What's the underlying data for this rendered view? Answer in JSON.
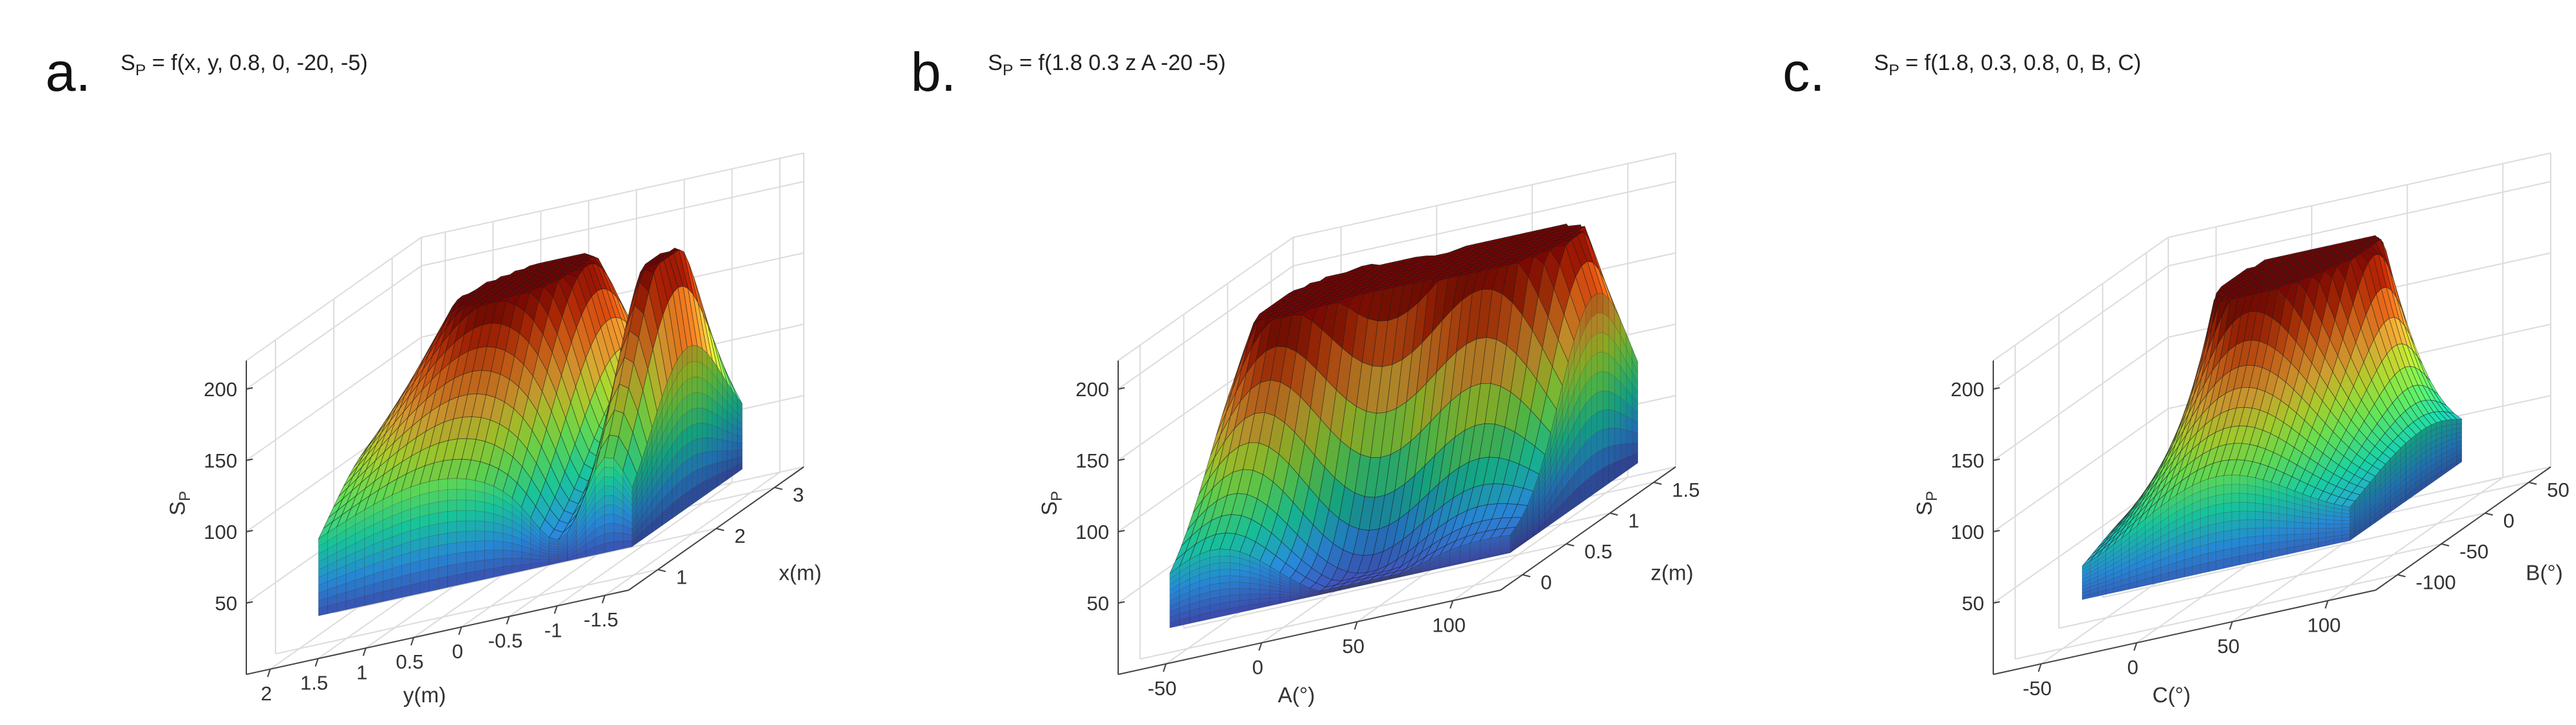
{
  "panels": [
    {
      "label": "a.",
      "title": "S_P = f(x, y, 0.8, 0, -20, -5)",
      "zlabel": "S_P",
      "xlabel": "y(m)",
      "ylabel": "x(m)",
      "zticks": [
        "50",
        "100",
        "150",
        "200"
      ],
      "xticks": [
        "2",
        "1.5",
        "1",
        "0.5",
        "0",
        "-0.5",
        "-1",
        "-1.5"
      ],
      "yticks": [
        "1",
        "2",
        "3"
      ]
    },
    {
      "label": "b.",
      "title": "S_P = f(1.8 0.3 z A -20 -5)",
      "zlabel": "S_P",
      "xlabel": "A(°)",
      "ylabel": "z(m)",
      "zticks": [
        "50",
        "100",
        "150",
        "200"
      ],
      "xticks": [
        "-50",
        "0",
        "50",
        "100"
      ],
      "yticks": [
        "0",
        "0.5",
        "1",
        "1.5"
      ]
    },
    {
      "label": "c.",
      "title": "S_P = f(1.8, 0.3, 0.8, 0, B, C)",
      "zlabel": "S_P",
      "xlabel": "C(°)",
      "ylabel": "B(°)",
      "zticks": [
        "50",
        "100",
        "150",
        "200"
      ],
      "xticks": [
        "-50",
        "0",
        "50",
        "100"
      ],
      "yticks": [
        "-100",
        "-50",
        "0",
        "50"
      ]
    }
  ],
  "chart_data": [
    {
      "type": "surface",
      "title": "S_P = f(x, y, 0.8, 0, -20, -5)",
      "x_axis": {
        "label": "y(m)",
        "range": [
          2,
          -2
        ],
        "ticks": [
          2,
          1.5,
          1,
          0.5,
          0,
          -0.5,
          -1,
          -1.5
        ]
      },
      "y_axis": {
        "label": "x(m)",
        "range": [
          0.5,
          3
        ],
        "ticks": [
          1,
          2,
          3
        ]
      },
      "z_axis": {
        "label": "S_P",
        "range": [
          0,
          200
        ],
        "ticks": [
          50,
          100,
          150,
          200
        ]
      },
      "surface": {
        "base": 30,
        "peaks": [
          {
            "u": 0.52,
            "v": 0.58,
            "height": 185,
            "spread_u": 0.2,
            "spread_v": 0.25
          },
          {
            "u": 0.87,
            "v": 0.45,
            "height": 170,
            "spread_u": 0.06,
            "spread_v": 0.2
          },
          {
            "u": 0.22,
            "v": 0.45,
            "height": 70,
            "spread_u": 0.25,
            "spread_v": 0.3
          }
        ],
        "dips": [
          {
            "u": 0.76,
            "v": 0.45,
            "depth": 55,
            "spread_u": 0.07,
            "spread_v": 0.25
          }
        ]
      },
      "colormap": "turbo",
      "grid": true
    },
    {
      "type": "surface",
      "title": "S_P = f(1.8 0.3 z A -20 -5)",
      "x_axis": {
        "label": "A(°)",
        "range": [
          -50,
          100
        ],
        "ticks": [
          -50,
          0,
          50,
          100
        ]
      },
      "y_axis": {
        "label": "z(m)",
        "range": [
          1.7,
          0
        ],
        "ticks": [
          0,
          0.5,
          1,
          1.5
        ]
      },
      "z_axis": {
        "label": "S_P",
        "range": [
          0,
          200
        ],
        "ticks": [
          50,
          100,
          150,
          200
        ]
      },
      "surface": {
        "base": 25,
        "peaks": [
          {
            "u": 0.5,
            "v": 0.6,
            "height": 195,
            "spread_u": 0.25,
            "spread_v": 0.22
          },
          {
            "u": 0.8,
            "v": 0.6,
            "height": 175,
            "spread_u": 0.16,
            "spread_v": 0.2
          },
          {
            "u": 0.2,
            "v": 0.6,
            "height": 140,
            "spread_u": 0.15,
            "spread_v": 0.3
          }
        ],
        "dips": [
          {
            "u": 0.55,
            "v": 0.3,
            "depth": 70,
            "spread_u": 0.2,
            "spread_v": 0.15
          }
        ]
      },
      "colormap": "turbo",
      "grid": true
    },
    {
      "type": "surface",
      "title": "S_P = f(1.8, 0.3, 0.8, 0, B, C)",
      "x_axis": {
        "label": "C(°)",
        "range": [
          -75,
          125
        ],
        "ticks": [
          -50,
          0,
          50,
          100
        ]
      },
      "y_axis": {
        "label": "B(°)",
        "range": [
          75,
          -110
        ],
        "ticks": [
          -100,
          -50,
          0,
          50
        ]
      },
      "z_axis": {
        "label": "S_P",
        "range": [
          0,
          200
        ],
        "ticks": [
          50,
          100,
          150,
          200
        ]
      },
      "surface": {
        "base": 40,
        "peaks": [
          {
            "u": 0.42,
            "v": 0.72,
            "height": 195,
            "spread_u": 0.09,
            "spread_v": 0.15
          },
          {
            "u": 0.55,
            "v": 0.72,
            "height": 180,
            "spread_u": 0.12,
            "spread_v": 0.15
          },
          {
            "u": 0.5,
            "v": 0.5,
            "height": 120,
            "spread_u": 0.2,
            "spread_v": 0.25
          }
        ],
        "dips": []
      },
      "colormap": "turbo",
      "grid": true
    }
  ]
}
